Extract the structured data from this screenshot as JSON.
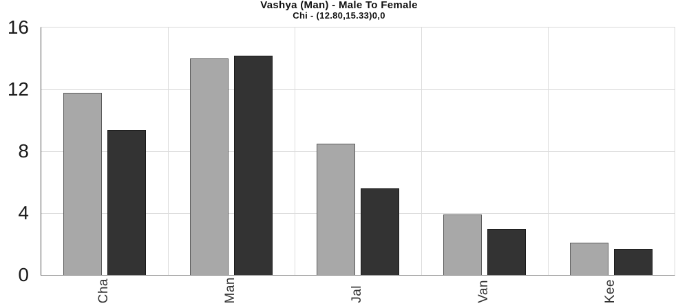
{
  "title": {
    "line1": "Vashya (Man) - Male To Female",
    "line2": "Chi - (12.80,15.33)0,0"
  },
  "chart_data": {
    "type": "bar",
    "title": "Vashya (Man) - Male To Female",
    "subtitle": "Chi - (12.80,15.33)0,0",
    "categories": [
      "Cha",
      "Man",
      "Jal",
      "Van",
      "Kee"
    ],
    "series": [
      {
        "name": "gray",
        "fill": "#a8a8a8",
        "border": "#595959",
        "values": [
          11.8,
          14.0,
          8.5,
          3.9,
          2.1
        ]
      },
      {
        "name": "dark",
        "fill": "#333333",
        "border": "#1a1a1a",
        "values": [
          9.4,
          14.2,
          5.6,
          3.0,
          1.7
        ]
      }
    ],
    "xlabel": "",
    "ylabel": "",
    "ylim": [
      0,
      16
    ],
    "y_ticks": [
      "0",
      "4",
      "8",
      "12",
      "16"
    ],
    "grid": true,
    "legend": "none",
    "colors": {
      "gridline": "#dcdcdc",
      "axis_left": "#4f4f4f",
      "axis_bottom": "#9a9a9a",
      "frame_light": "#d9d9d9"
    }
  }
}
